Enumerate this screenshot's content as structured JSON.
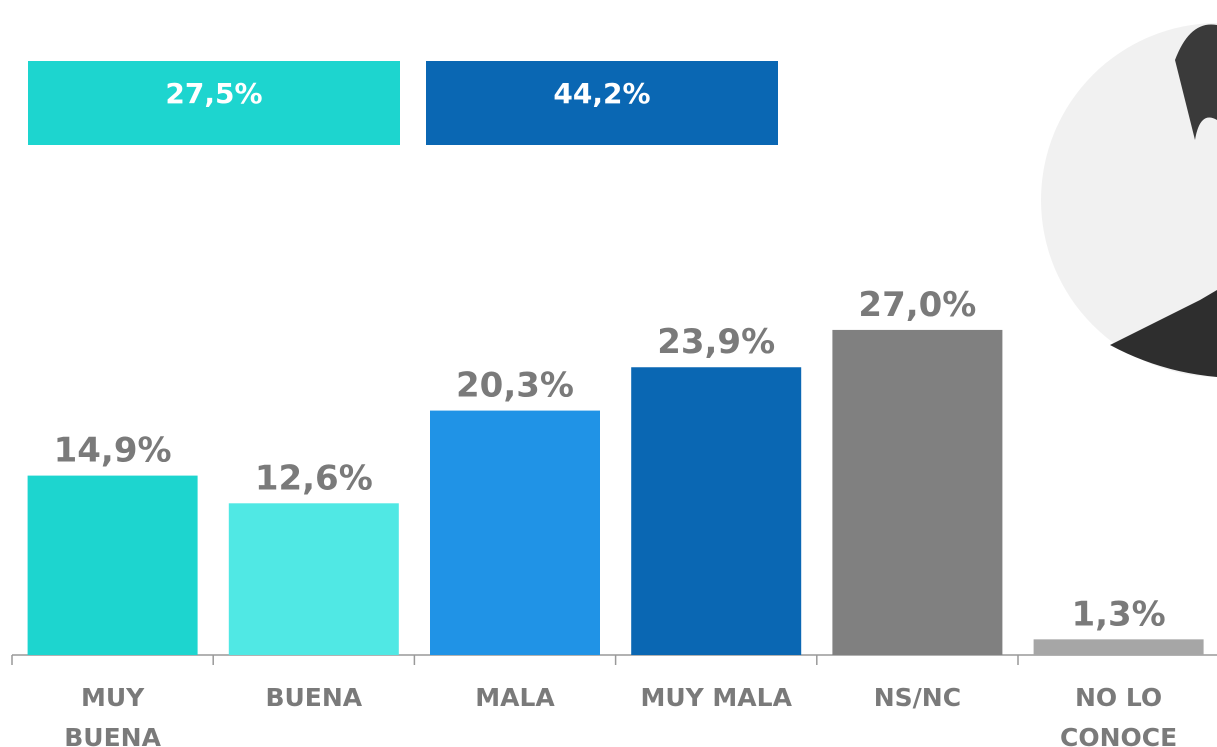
{
  "chart_data": {
    "type": "bar",
    "categories": [
      "MUY\nBUENA",
      "BUENA",
      "MALA",
      "MUY MALA",
      "NS/NC",
      "NO LO\nCONOCE"
    ],
    "values": [
      14.9,
      12.6,
      20.3,
      23.9,
      27.0,
      1.3
    ],
    "value_labels": [
      "14,9%",
      "12,6%",
      "20,3%",
      "23,9%",
      "27,0%",
      "1,3%"
    ],
    "colors": [
      "#1dd5cf",
      "#50e8e4",
      "#2093e6",
      "#0a67b3",
      "#808080",
      "#a6a6a6"
    ],
    "summary": [
      {
        "label": "27,5%",
        "color": "#1dd5cf"
      },
      {
        "label": "44,2%",
        "color": "#0a67b3"
      }
    ]
  }
}
